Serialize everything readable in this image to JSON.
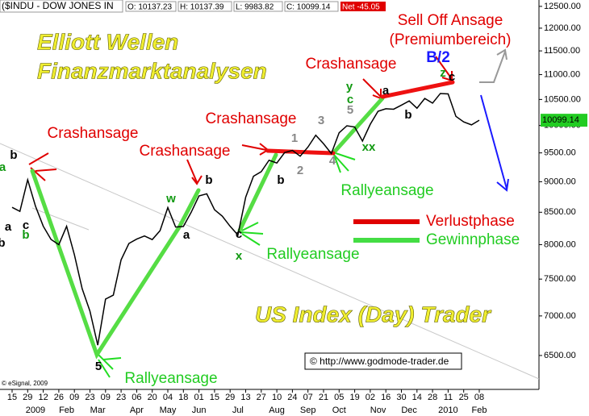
{
  "chart_data": {
    "type": "line",
    "header": {
      "symbol": "($INDU - DOW JONES IN",
      "open": "O: 10137.23",
      "high": "H: 10137.39",
      "low": "L: 9983.82",
      "close": "C: 10099.14",
      "net": "Net -45.05"
    },
    "categories": [
      "15",
      null,
      "29",
      null,
      "12",
      null,
      "26",
      null,
      "09",
      null,
      "23",
      null,
      "09",
      null,
      "23",
      null,
      "06",
      null,
      "20",
      null,
      "04",
      null,
      "18",
      null,
      "01",
      null,
      "15",
      null,
      "29",
      null,
      "13",
      null,
      "27",
      null,
      "10",
      null,
      "24",
      null,
      "07",
      null,
      "21",
      null,
      "05",
      null,
      "19",
      null,
      "02",
      null,
      "16",
      null,
      "30",
      null,
      "14",
      null,
      "28",
      null,
      "11",
      null,
      "25",
      null,
      "08"
    ],
    "month_ticks": [
      {
        "value": 3,
        "label": "2009"
      },
      {
        "value": 7,
        "label": "Feb"
      },
      {
        "value": 11,
        "label": "Mar"
      },
      {
        "value": 16,
        "label": "Apr"
      },
      {
        "value": 20,
        "label": "May"
      },
      {
        "value": 24,
        "label": "Jun"
      },
      {
        "value": 29,
        "label": "Jul"
      },
      {
        "value": 34,
        "label": "Aug"
      },
      {
        "value": 38,
        "label": "Sep"
      },
      {
        "value": 42,
        "label": "Oct"
      },
      {
        "value": 47,
        "label": "Nov"
      },
      {
        "value": 51,
        "label": "Dec"
      },
      {
        "value": 56,
        "label": "2010"
      },
      {
        "value": 60,
        "label": "Feb"
      }
    ],
    "series": [
      {
        "name": "$INDU",
        "color": "#000000",
        "values": [
          8579,
          8515,
          9034,
          8599,
          8281,
          8078,
          8000,
          8280,
          7850,
          7366,
          7062,
          6627,
          7224,
          7278,
          7776,
          8017,
          8083,
          8131,
          8076,
          8212,
          8575,
          8268,
          8277,
          8500,
          8764,
          8799,
          8540,
          8438,
          8280,
          8146,
          8743,
          9093,
          9172,
          9370,
          9321,
          9505,
          9544,
          9441,
          9605,
          9820,
          9665,
          9488,
          9865,
          9995,
          9972,
          9713,
          10023,
          10270,
          10318,
          10310,
          10388,
          10471,
          10329,
          10520,
          10428,
          10618,
          10610,
          10173,
          10067,
          10012,
          10099
        ]
      }
    ],
    "last_value": 10099.14,
    "log_y": true,
    "ylim": [
      6100,
      12650
    ],
    "yticks": [
      {
        "value": 12500,
        "label": "12500.00"
      },
      {
        "value": 12000,
        "label": "12000.00"
      },
      {
        "value": 11500,
        "label": "11500.00"
      },
      {
        "value": 11000,
        "label": "11000.00"
      },
      {
        "value": 10500,
        "label": "10500.00"
      },
      {
        "value": 10000,
        "label": "10000.00"
      },
      {
        "value": 9500,
        "label": "9500.00"
      },
      {
        "value": 9000,
        "label": "9000.00"
      },
      {
        "value": 8500,
        "label": "8500.00"
      },
      {
        "value": 8000,
        "label": "8000.00"
      },
      {
        "value": 7500,
        "label": "7500.00"
      },
      {
        "value": 7000,
        "label": "7000.00"
      },
      {
        "value": 6500,
        "label": "6500.00"
      }
    ],
    "annotations": [
      {
        "text": "Sell Off Ansage",
        "color": "#e00000"
      },
      {
        "text": "(Premiumbereich)",
        "color": "#e00000"
      },
      {
        "text": "B/2",
        "color": "#1a1aff"
      },
      {
        "text": "Crashansage",
        "color": "#e00000"
      },
      {
        "text": "Crashansage",
        "color": "#e00000"
      },
      {
        "text": "Crashansage",
        "color": "#e00000"
      },
      {
        "text": "Crashansage",
        "color": "#e00000"
      },
      {
        "text": "Rallyeansage",
        "color": "#22cc22"
      },
      {
        "text": "Rallyeansage",
        "color": "#22cc22"
      },
      {
        "text": "Rallyeansage",
        "color": "#22cc22"
      }
    ],
    "legend": [
      {
        "name": "Verlustphase",
        "color": "#e00000"
      },
      {
        "name": "Gewinnphase",
        "color": "#44dd44"
      }
    ],
    "waves": [
      {
        "text": "a",
        "color": "#119911"
      },
      {
        "text": "b",
        "color": "#000000"
      },
      {
        "text": "c",
        "color": "#000000"
      },
      {
        "text": "b",
        "color": "#119911"
      },
      {
        "text": "a",
        "color": "#000000"
      },
      {
        "text": "b",
        "color": "#000000"
      },
      {
        "text": "5",
        "color": "#000000"
      },
      {
        "text": "w",
        "color": "#119911"
      },
      {
        "text": "b",
        "color": "#000000"
      },
      {
        "text": "a",
        "color": "#000000"
      },
      {
        "text": "c",
        "color": "#000000"
      },
      {
        "text": "x",
        "color": "#119911"
      },
      {
        "text": "b",
        "color": "#000000"
      },
      {
        "text": "2",
        "color": "#888888"
      },
      {
        "text": "3",
        "color": "#888888"
      },
      {
        "text": "4",
        "color": "#888888"
      },
      {
        "text": "1",
        "color": "#888888"
      },
      {
        "text": "y",
        "color": "#119911"
      },
      {
        "text": "c",
        "color": "#119911"
      },
      {
        "text": "5",
        "color": "#888888"
      },
      {
        "text": "xx",
        "color": "#119911"
      },
      {
        "text": "a",
        "color": "#000000"
      },
      {
        "text": "b",
        "color": "#000000"
      },
      {
        "text": "z",
        "color": "#119911"
      },
      {
        "text": "c",
        "color": "#000000"
      }
    ],
    "brand_lines": [
      "Elliott Wellen",
      "Finanzmarktanalysen",
      "US Index (Day) Trader"
    ],
    "url": "© http://www.godmode-trader.de",
    "copyright": "© eSignal, 2009"
  }
}
